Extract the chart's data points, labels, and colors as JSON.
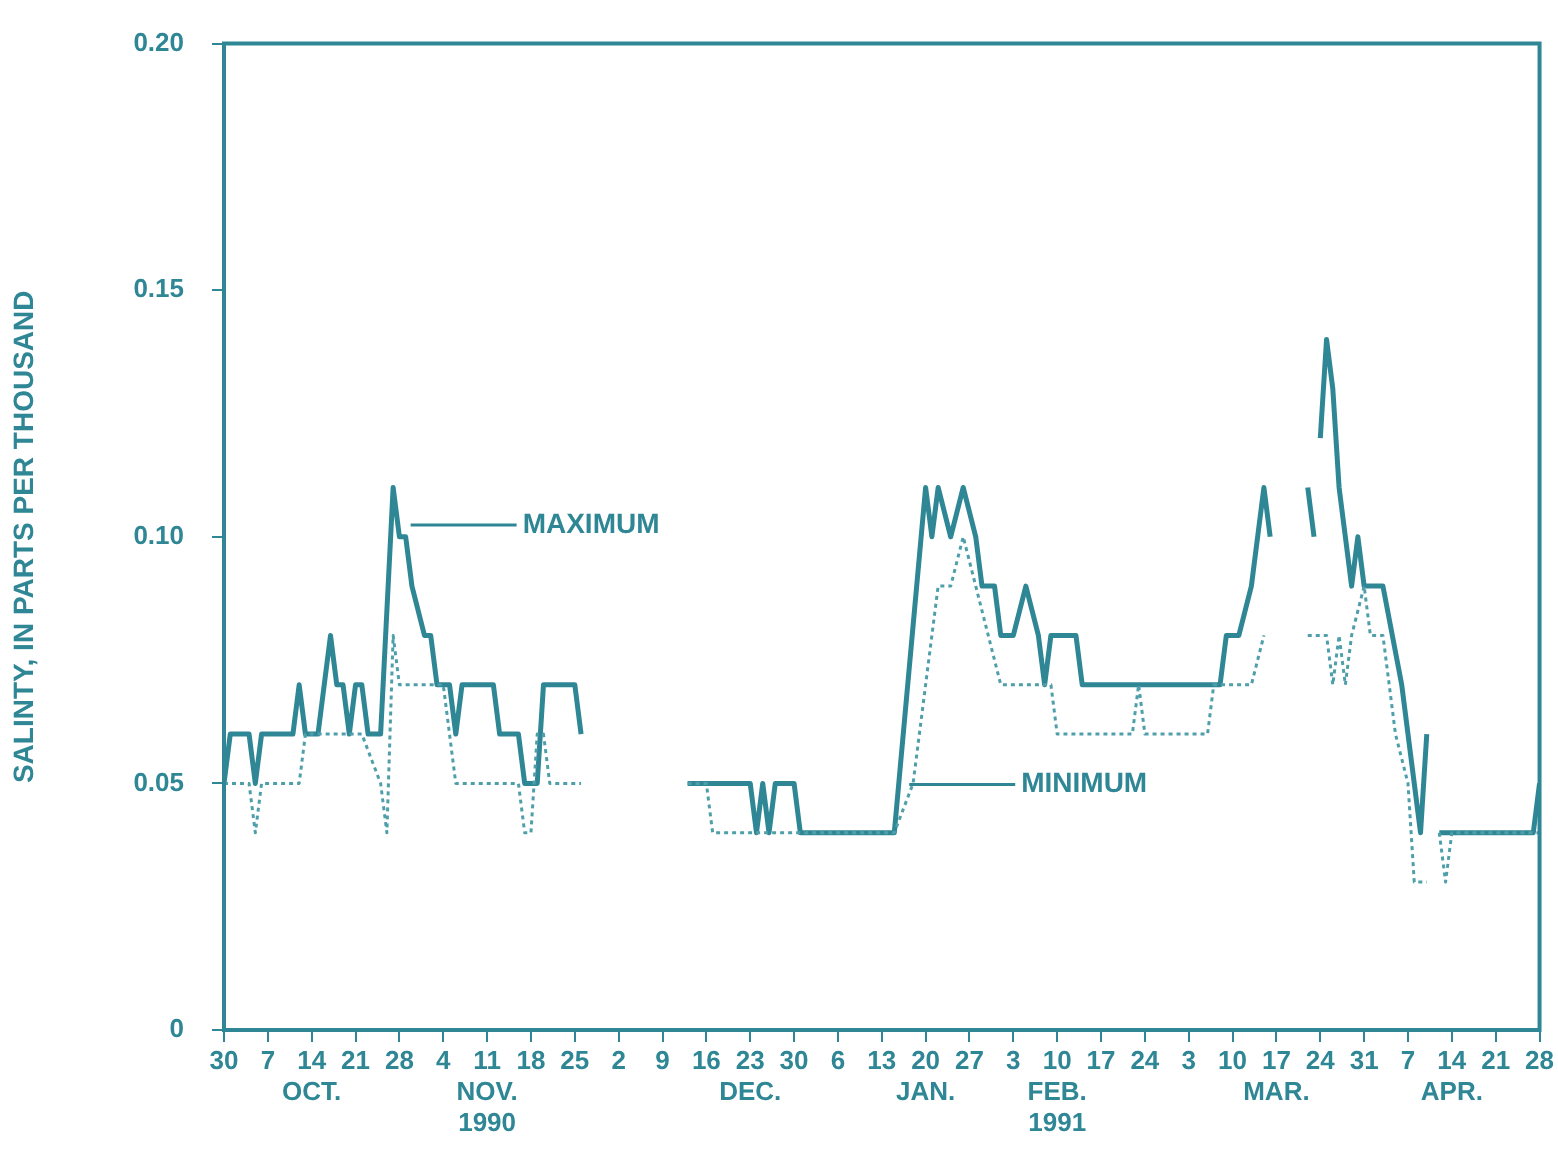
{
  "chart_data": {
    "type": "line",
    "ylabel": "SALINTY, IN PARTS PER THOUSAND",
    "xlim": [
      "1990-09-30",
      "1991-04-28"
    ],
    "xticks": [
      {
        "value": "1990-09-30",
        "label": "30"
      },
      {
        "value": "1990-10-07",
        "label": "7"
      },
      {
        "value": "1990-10-14",
        "label": "14\nOCT."
      },
      {
        "value": "1990-10-21",
        "label": "21"
      },
      {
        "value": "1990-10-28",
        "label": "28"
      },
      {
        "value": "1990-11-04",
        "label": "4"
      },
      {
        "value": "1990-11-11",
        "label": "11\nNOV.\n1990"
      },
      {
        "value": "1990-11-18",
        "label": "18"
      },
      {
        "value": "1990-11-25",
        "label": "25"
      },
      {
        "value": "1990-12-02",
        "label": "2"
      },
      {
        "value": "1990-12-09",
        "label": "9"
      },
      {
        "value": "1990-12-16",
        "label": "16"
      },
      {
        "value": "1990-12-23",
        "label": "23\nDEC."
      },
      {
        "value": "1990-12-30",
        "label": "30"
      },
      {
        "value": "1991-01-06",
        "label": "6"
      },
      {
        "value": "1991-01-13",
        "label": "13"
      },
      {
        "value": "1991-01-20",
        "label": "20\nJAN."
      },
      {
        "value": "1991-01-27",
        "label": "27"
      },
      {
        "value": "1991-02-03",
        "label": "3"
      },
      {
        "value": "1991-02-10",
        "label": "10\nFEB.\n1991"
      },
      {
        "value": "1991-02-17",
        "label": "17"
      },
      {
        "value": "1991-02-24",
        "label": "24"
      },
      {
        "value": "1991-03-03",
        "label": "3"
      },
      {
        "value": "1991-03-10",
        "label": "10"
      },
      {
        "value": "1991-03-17",
        "label": "17\nMAR."
      },
      {
        "value": "1991-03-24",
        "label": "24"
      },
      {
        "value": "1991-03-31",
        "label": "31"
      },
      {
        "value": "1991-04-07",
        "label": "7"
      },
      {
        "value": "1991-04-14",
        "label": "14\nAPR."
      },
      {
        "value": "1991-04-21",
        "label": "21"
      },
      {
        "value": "1991-04-28",
        "label": "28"
      }
    ],
    "ylim": [
      0,
      0.2
    ],
    "yticks": [
      0,
      0.05,
      {
        "value": 0.1,
        "label": "0.10"
      },
      0.15,
      {
        "value": 0.2,
        "label": "0.20"
      }
    ],
    "legend": false,
    "marker": "none",
    "annotations": [
      "MAXIMUM",
      "MINIMUM"
    ],
    "series": [
      {
        "color": "#2f8795",
        "line_style": "solid",
        "x": [
          "1990-09-30",
          "1990-10-01",
          "1990-10-04",
          "1990-10-05",
          "1990-10-06",
          "1990-10-11",
          "1990-10-12",
          "1990-10-13",
          "1990-10-15",
          "1990-10-17",
          "1990-10-18",
          "1990-10-19",
          "1990-10-20",
          "1990-10-21",
          "1990-10-22",
          "1990-10-23",
          "1990-10-25",
          "1990-10-27",
          "1990-10-28",
          "1990-10-29",
          "1990-10-30",
          "1990-11-01",
          "1990-11-02",
          "1990-11-03",
          "1990-11-05",
          "1990-11-06",
          "1990-11-07",
          "1990-11-12",
          "1990-11-13",
          "1990-11-16",
          "1990-11-17",
          "1990-11-19",
          "1990-11-20",
          "1990-11-25",
          "1990-11-26",
          "1990-12-04",
          "1990-12-13",
          "1990-12-23",
          "1990-12-24",
          "1990-12-25",
          "1990-12-26",
          "1990-12-27",
          "1990-12-30",
          "1990-12-31",
          "1991-01-15",
          "1991-01-20",
          "1991-01-21",
          "1991-01-22",
          "1991-01-24",
          "1991-01-26",
          "1991-01-28",
          "1991-01-29",
          "1991-01-31",
          "1991-02-01",
          "1991-02-03",
          "1991-02-05",
          "1991-02-07",
          "1991-02-08",
          "1991-02-09",
          "1991-02-13",
          "1991-02-14",
          "1991-03-08",
          "1991-03-09",
          "1991-03-11",
          "1991-03-13",
          "1991-03-15",
          "1991-03-16",
          "1991-03-19",
          "1991-03-22",
          "1991-03-23",
          "1991-03-23T12:00",
          "1991-03-24",
          "1991-03-25",
          "1991-03-26",
          "1991-03-27",
          "1991-03-28",
          "1991-03-29",
          "1991-03-30",
          "1991-03-31",
          "1991-04-03",
          "1991-04-06",
          "1991-04-07",
          "1991-04-08",
          "1991-04-09",
          "1991-04-10",
          "1991-04-11",
          "1991-04-12",
          "1991-04-27",
          "1991-04-28"
        ],
        "values": [
          0.05,
          0.06,
          0.06,
          0.05,
          0.06,
          0.06,
          0.07,
          0.06,
          0.06,
          0.08,
          0.07,
          0.07,
          0.06,
          0.07,
          0.07,
          0.06,
          0.06,
          0.11,
          0.1,
          0.1,
          0.09,
          0.08,
          0.08,
          0.07,
          0.07,
          0.06,
          0.07,
          0.07,
          0.06,
          0.06,
          0.05,
          0.05,
          0.07,
          0.07,
          0.06,
          null,
          0.05,
          0.05,
          0.04,
          0.05,
          0.04,
          0.05,
          0.05,
          0.04,
          0.04,
          0.11,
          0.1,
          0.11,
          0.1,
          0.11,
          0.1,
          0.09,
          0.09,
          0.08,
          0.08,
          0.09,
          0.08,
          0.07,
          0.08,
          0.08,
          0.07,
          0.07,
          0.08,
          0.08,
          0.09,
          0.11,
          0.1,
          null,
          0.11,
          0.1,
          null,
          0.12,
          0.14,
          0.13,
          0.11,
          0.1,
          0.09,
          0.1,
          0.09,
          0.09,
          0.07,
          0.06,
          0.05,
          0.04,
          0.06,
          null,
          0.04,
          0.04,
          0.05
        ]
      },
      {
        "color": "#4f9fab",
        "line_style": "dotted",
        "x": [
          "1990-09-30",
          "1990-10-04",
          "1990-10-05",
          "1990-10-06",
          "1990-10-12",
          "1990-10-13",
          "1990-10-22",
          "1990-10-25",
          "1990-10-26",
          "1990-10-27",
          "1990-10-28",
          "1990-11-04",
          "1990-11-05",
          "1990-11-06",
          "1990-11-16",
          "1990-11-17",
          "1990-11-18",
          "1990-11-19",
          "1990-11-20",
          "1990-11-21",
          "1990-11-26",
          "1990-12-04",
          "1990-12-13",
          "1990-12-16",
          "1990-12-17",
          "1991-01-15",
          "1991-01-18",
          "1991-01-22",
          "1991-01-24",
          "1991-01-26",
          "1991-01-28",
          "1991-01-30",
          "1991-02-01",
          "1991-02-09",
          "1991-02-10",
          "1991-02-22",
          "1991-02-23",
          "1991-02-24",
          "1991-03-06",
          "1991-03-07",
          "1991-03-13",
          "1991-03-15",
          "1991-03-19",
          "1991-03-22",
          "1991-03-25",
          "1991-03-26",
          "1991-03-27",
          "1991-03-28",
          "1991-03-29",
          "1991-03-31",
          "1991-04-01",
          "1991-04-03",
          "1991-04-05",
          "1991-04-07",
          "1991-04-08",
          "1991-04-10",
          "1991-04-11",
          "1991-04-12",
          "1991-04-13",
          "1991-04-14",
          "1991-04-28"
        ],
        "values": [
          0.05,
          0.05,
          0.04,
          0.05,
          0.05,
          0.06,
          0.06,
          0.05,
          0.04,
          0.08,
          0.07,
          0.07,
          0.06,
          0.05,
          0.05,
          0.04,
          0.04,
          0.06,
          0.06,
          0.05,
          0.05,
          null,
          0.05,
          0.05,
          0.04,
          0.04,
          0.05,
          0.09,
          0.09,
          0.1,
          0.09,
          0.08,
          0.07,
          0.07,
          0.06,
          0.06,
          0.07,
          0.06,
          0.06,
          0.07,
          0.07,
          0.08,
          null,
          0.08,
          0.08,
          0.07,
          0.08,
          0.07,
          0.08,
          0.09,
          0.08,
          0.08,
          0.06,
          0.05,
          0.03,
          0.03,
          null,
          0.04,
          0.03,
          0.04,
          0.04
        ]
      }
    ]
  }
}
